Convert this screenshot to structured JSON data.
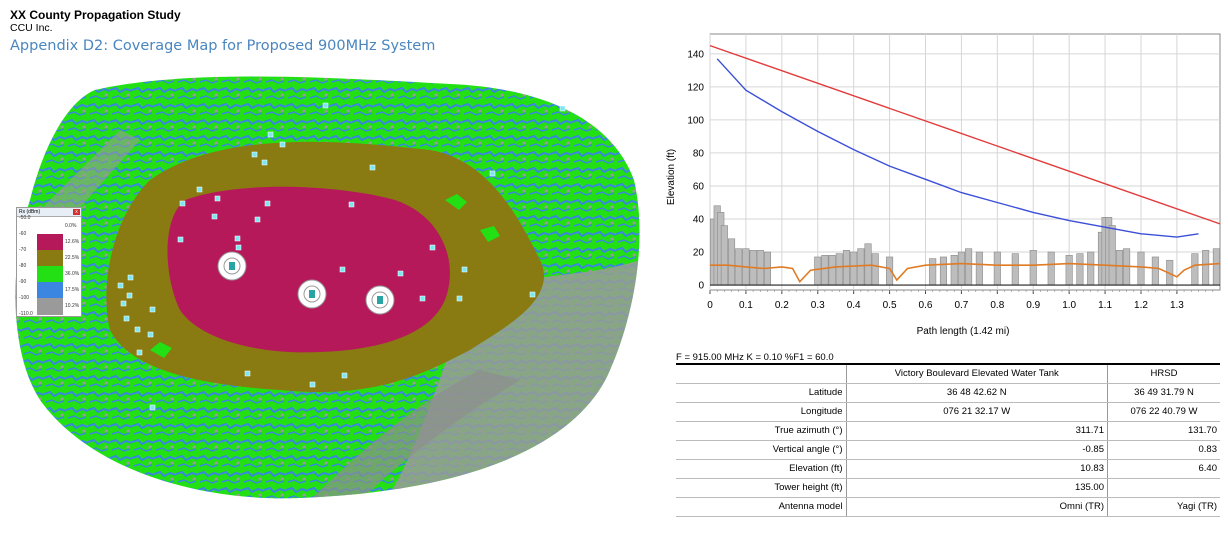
{
  "header": {
    "title": "XX County Propagation Study",
    "company": "CCU Inc.",
    "appendix": "Appendix D2: Coverage Map for Proposed 900MHz System"
  },
  "legend": {
    "title": "Rx (dBm)",
    "close": "x",
    "levels": [
      {
        "label": "-50.0",
        "pct": "0.0%",
        "color": "#ffffff"
      },
      {
        "label": "-60",
        "pct": "12.6%",
        "color": "#b5195a"
      },
      {
        "label": "-70",
        "pct": "22.5%",
        "color": "#8a7a12"
      },
      {
        "label": "-80",
        "pct": "36.0%",
        "color": "#22e014"
      },
      {
        "label": "-90",
        "pct": "17.5%",
        "color": "#3a86e0"
      },
      {
        "label": "-100",
        "pct": "10.2%",
        "color": "#9a9a9a"
      },
      {
        "label": "-110.0",
        "pct": "",
        "color": ""
      }
    ]
  },
  "colors": {
    "far": "#9a9a9a",
    "weak": "#3a86e0",
    "fair": "#22e014",
    "good": "#8a7a12",
    "strong": "#b5195a",
    "terrain": "#e07b25",
    "los_curve": "#3b4fd8",
    "fresnel_line": "#e33a3a",
    "bars": "#bdbdbd"
  },
  "chart_data": {
    "type": "line",
    "xlabel": "Path length (1.42 mi)",
    "ylabel": "Elevation (ft)",
    "xlim": [
      0,
      1.42
    ],
    "ylim": [
      -3,
      152
    ],
    "xticks": [
      "0",
      "0.1",
      "0.2",
      "0.3",
      "0.4",
      "0.5",
      "0.6",
      "0.7",
      "0.8",
      "0.9",
      "1.0",
      "1.1",
      "1.2",
      "1.3"
    ],
    "yticks": [
      "0",
      "20",
      "40",
      "60",
      "80",
      "100",
      "120",
      "140"
    ],
    "grid": true,
    "series": [
      {
        "x": [
          0,
          1.42
        ],
        "y": [
          145,
          37
        ]
      },
      {
        "x": [
          0.02,
          0.1,
          0.2,
          0.3,
          0.4,
          0.5,
          0.6,
          0.7,
          0.8,
          0.9,
          1.0,
          1.1,
          1.2,
          1.3,
          1.36
        ],
        "y": [
          137,
          118,
          105,
          93,
          82,
          72,
          64,
          56,
          50,
          44,
          39,
          35,
          31,
          29,
          31
        ]
      },
      {
        "x": [
          0,
          0.05,
          0.1,
          0.15,
          0.2,
          0.23,
          0.25,
          0.28,
          0.35,
          0.45,
          0.5,
          0.52,
          0.55,
          0.6,
          0.7,
          0.8,
          0.9,
          1.0,
          1.1,
          1.2,
          1.25,
          1.3,
          1.32,
          1.35,
          1.42
        ],
        "y": [
          12,
          12,
          11,
          10,
          11,
          10,
          2,
          9,
          11,
          12,
          10,
          3,
          10,
          12,
          13,
          12,
          12,
          13,
          12,
          11,
          10,
          5,
          9,
          12,
          13
        ]
      },
      {
        "x": [
          0.01,
          0.02,
          0.03,
          0.04,
          0.06,
          0.08,
          0.1,
          0.12,
          0.14,
          0.16,
          0.3,
          0.32,
          0.34,
          0.36,
          0.38,
          0.4,
          0.42,
          0.44,
          0.46,
          0.5,
          0.62,
          0.65,
          0.68,
          0.7,
          0.72,
          0.75,
          0.8,
          0.85,
          0.9,
          0.95,
          1.0,
          1.03,
          1.06,
          1.09,
          1.1,
          1.11,
          1.12,
          1.14,
          1.16,
          1.2,
          1.24,
          1.28,
          1.35,
          1.38,
          1.41
        ],
        "y": [
          40,
          48,
          44,
          36,
          28,
          22,
          22,
          21,
          21,
          20,
          17,
          18,
          18,
          19,
          21,
          20,
          22,
          25,
          19,
          17,
          16,
          17,
          18,
          20,
          22,
          20,
          20,
          19,
          21,
          20,
          18,
          19,
          20,
          32,
          41,
          41,
          36,
          21,
          22,
          20,
          17,
          15,
          19,
          21,
          22
        ]
      }
    ]
  },
  "radio": {
    "params": "F = 915.00 MHz K = 0.10 %F1 = 60.0",
    "site_a": "Victory Boulevard Elevated Water Tank",
    "site_b": "HRSD",
    "rows": [
      {
        "label": "Latitude",
        "a": "36 48 42.62 N",
        "b": "36 49 31.79 N",
        "align": "c"
      },
      {
        "label": "Longitude",
        "a": "076 21 32.17 W",
        "b": "076 22 40.79 W",
        "align": "c"
      },
      {
        "label": "True azimuth (°)",
        "a": "311.71",
        "b": "131.70",
        "align": "r"
      },
      {
        "label": "Vertical angle (°)",
        "a": "-0.85",
        "b": "0.83",
        "align": "r"
      },
      {
        "label": "Elevation (ft)",
        "a": "10.83",
        "b": "6.40",
        "align": "r"
      },
      {
        "label": "Tower height (ft)",
        "a": "135.00",
        "b": "",
        "align": "r"
      },
      {
        "label": "Antenna model",
        "a": "Omni (TR)",
        "b": "Yagi (TR)",
        "align": "r"
      }
    ]
  }
}
